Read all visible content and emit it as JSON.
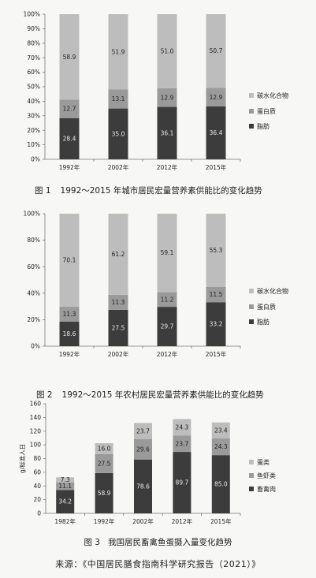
{
  "chart_data": [
    {
      "type": "bar",
      "stacked": true,
      "categories": [
        "1992年",
        "2002年",
        "2012年",
        "2015年"
      ],
      "yticks": [
        "0%",
        "10%",
        "20%",
        "30%",
        "40%",
        "50%",
        "60%",
        "70%",
        "80%",
        "90%",
        "100%"
      ],
      "ylim": [
        0,
        100
      ],
      "series": [
        {
          "name": "脂肪",
          "values": [
            28.4,
            35.0,
            36.1,
            36.4
          ],
          "labels": [
            "28.4",
            "35.0",
            "36.1",
            "36.4"
          ],
          "color": "#3c3c3c"
        },
        {
          "name": "蛋白质",
          "values": [
            12.7,
            13.1,
            12.9,
            12.9
          ],
          "labels": [
            "12.7",
            "13.1",
            "12.9",
            "12.9"
          ],
          "color": "#9a9a9a"
        },
        {
          "name": "碳水化合物",
          "values": [
            58.9,
            51.9,
            51.0,
            50.7
          ],
          "labels": [
            "58.9",
            "51.9",
            "51.0",
            "50.7"
          ],
          "color": "#bdbdbd"
        }
      ],
      "legend": "right",
      "grid": false,
      "caption_number": "图 1",
      "caption_text": "1992～2015 年城市居民宏量营养素供能比的变化趋势"
    },
    {
      "type": "bar",
      "stacked": true,
      "categories": [
        "1992年",
        "2002年",
        "2012年",
        "2015年"
      ],
      "yticks": [
        "0%",
        "20%",
        "40%",
        "60%",
        "80%",
        "100%"
      ],
      "ylim": [
        0,
        100
      ],
      "series": [
        {
          "name": "脂肪",
          "values": [
            18.6,
            27.5,
            29.7,
            33.2
          ],
          "labels": [
            "18.6",
            "27.5",
            "29.7",
            "33.2"
          ],
          "color": "#3c3c3c"
        },
        {
          "name": "蛋白质",
          "values": [
            11.3,
            11.3,
            11.2,
            11.5
          ],
          "labels": [
            "11.3",
            "11.3",
            "11.2",
            "11.5"
          ],
          "color": "#9a9a9a"
        },
        {
          "name": "碳水化合物",
          "values": [
            70.1,
            61.2,
            59.1,
            55.3
          ],
          "labels": [
            "70.1",
            "61.2",
            "59.1",
            "55.3"
          ],
          "color": "#bdbdbd"
        }
      ],
      "legend": "right",
      "grid": false,
      "caption_number": "图 2",
      "caption_text": "1992～2015 年农村居民宏量营养素供能比的变化趋势"
    },
    {
      "type": "bar",
      "stacked": true,
      "categories": [
        "1982年",
        "1992年",
        "2002年",
        "2012年",
        "2015年"
      ],
      "yticks": [
        "0",
        "20",
        "40",
        "60",
        "80",
        "100",
        "120",
        "140",
        "160"
      ],
      "ylim": [
        0,
        160
      ],
      "ylabel": "g/标准人日",
      "series": [
        {
          "name": "畜禽肉",
          "values": [
            34.2,
            58.9,
            78.6,
            89.7,
            85.0
          ],
          "labels": [
            "34.2",
            "58.9",
            "78.6",
            "89.7",
            "85.0"
          ],
          "color": "#3c3c3c"
        },
        {
          "name": "鱼虾类",
          "values": [
            11.1,
            27.5,
            29.6,
            23.7,
            24.3
          ],
          "labels": [
            "11.1",
            "27.5",
            "29.6",
            "23.7",
            "24.3"
          ],
          "color": "#9a9a9a"
        },
        {
          "name": "蛋类",
          "values": [
            7.3,
            16.0,
            23.7,
            24.3,
            23.4
          ],
          "labels": [
            "7.3",
            "16.0",
            "23.7",
            "24.3",
            "23.4"
          ],
          "color": "#bdbdbd"
        }
      ],
      "legend": "right",
      "grid": false,
      "caption_number": "图 3",
      "caption_text": "我国居民畜禽鱼蛋摄入量变化趋势"
    }
  ],
  "source_text": "来源：《中国居民膳食指南科学研究报告（2021）》"
}
